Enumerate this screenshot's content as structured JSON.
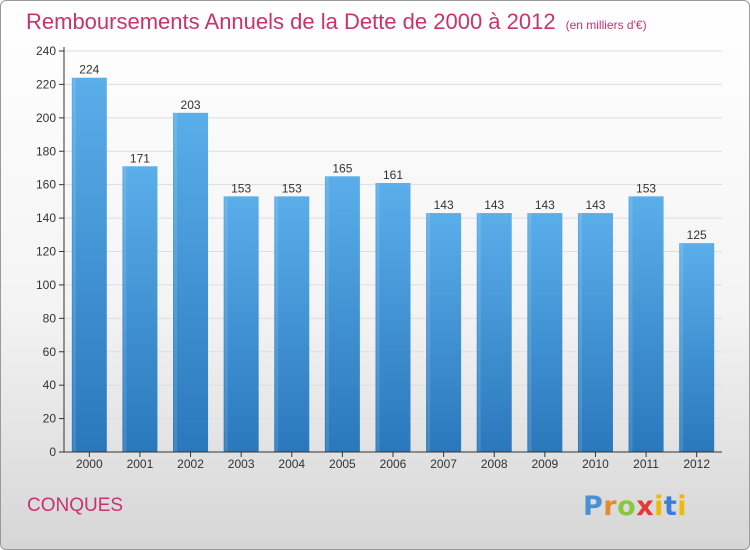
{
  "title": "Remboursements Annuels de la Dette de 2000 à 2012",
  "unit_note": "(en milliers d'€)",
  "commune": "CONQUES",
  "logo": {
    "p": "P",
    "r": "r",
    "o": "o",
    "x": "x",
    "i": "i",
    "t": "t",
    "i2": "i"
  },
  "colors": {
    "title": "#c8336e",
    "bar_light": "#5aaeea",
    "bar_dark": "#2a78bc",
    "axis": "#333333",
    "grid": "#dddddd"
  },
  "chart_data": {
    "type": "bar",
    "categories": [
      "2000",
      "2001",
      "2002",
      "2003",
      "2004",
      "2005",
      "2006",
      "2007",
      "2008",
      "2009",
      "2010",
      "2011",
      "2012"
    ],
    "values": [
      224,
      171,
      203,
      153,
      153,
      165,
      161,
      143,
      143,
      143,
      143,
      153,
      125
    ],
    "title": "Remboursements Annuels de la Dette de 2000 à 2012",
    "xlabel": "",
    "ylabel": "",
    "ylim": [
      0,
      240
    ],
    "yticks": [
      0,
      20,
      40,
      60,
      80,
      100,
      120,
      140,
      160,
      180,
      200,
      220,
      240
    ],
    "grid": true,
    "data_labels": true
  }
}
